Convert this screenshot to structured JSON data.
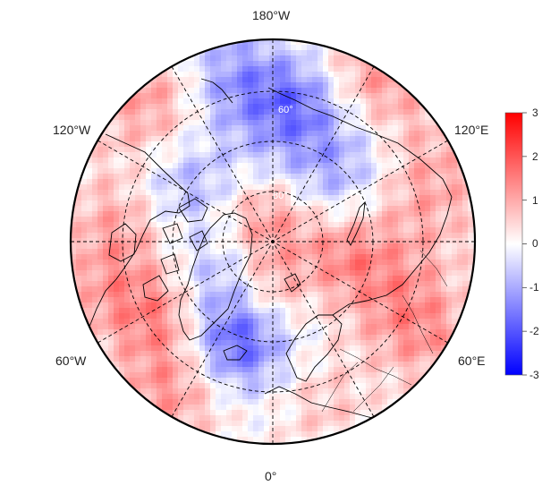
{
  "map": {
    "projection": "north-polar-stereographic",
    "longitude_labels": {
      "top": "180°W",
      "upper_left": "120°W",
      "upper_right": "120°E",
      "lower_left": "60°W",
      "lower_right": "60°E",
      "bottom": "0°"
    },
    "latitude_ring_labels": [
      "60°",
      "80°"
    ],
    "graticule_style": "dashed",
    "coastlines": true,
    "country_borders": true
  },
  "colorbar": {
    "min": -3,
    "max": 3,
    "ticks": [
      "3",
      "2",
      "1",
      "0",
      "-1",
      "-2",
      "-3"
    ],
    "colors": {
      "low": "#0000ff",
      "mid": "#ffffff",
      "high": "#ff0000"
    }
  }
}
